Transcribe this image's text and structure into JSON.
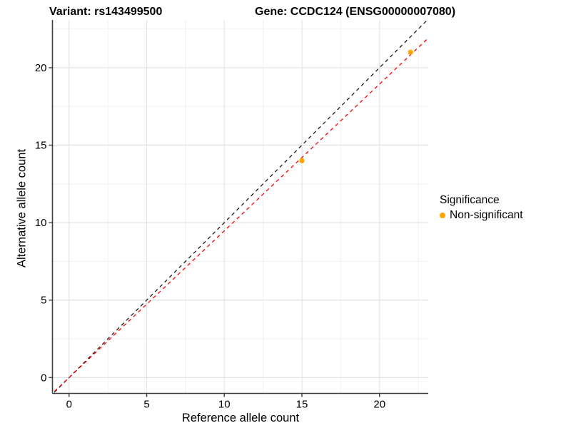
{
  "figure": {
    "title_variant": "Variant: rs143499500",
    "title_gene": "Gene: CCDC124 (ENSG00000007080)"
  },
  "chart_data": {
    "type": "scatter",
    "title": "Variant: rs143499500   Gene: CCDC124 (ENSG00000007080)",
    "xlabel": "Reference allele count",
    "ylabel": "Alternative allele count",
    "xlim": [
      -1.07,
      23.14
    ],
    "ylim": [
      -1.02,
      23.08
    ],
    "x_ticks": [
      0,
      5,
      10,
      15,
      20
    ],
    "y_ticks": [
      0,
      5,
      10,
      15,
      20
    ],
    "x_minor_ticks": [
      2.5,
      7.5,
      12.5,
      17.5,
      22.5
    ],
    "y_minor_ticks": [
      2.5,
      7.5,
      12.5,
      17.5,
      22.5
    ],
    "grid": "major+minor",
    "points": [
      {
        "x": 15,
        "y": 14,
        "series": "Non-significant"
      },
      {
        "x": 22,
        "y": 21,
        "series": "Non-significant"
      }
    ],
    "lines": [
      {
        "name": "identity-line",
        "slope": 1.0,
        "intercept": 0,
        "color": "#1a1a1a",
        "style": "dashed"
      },
      {
        "name": "fit-line",
        "slope": 0.947,
        "intercept": 0,
        "color": "#ff0000",
        "style": "dashed"
      }
    ],
    "legend": {
      "title": "Significance",
      "position": "right",
      "entries": [
        {
          "label": "Non-significant",
          "color": "#FFA500"
        }
      ]
    },
    "colors": {
      "point": "#FFA500",
      "grid_major": "#e3e3e3",
      "grid_minor": "#f1f1f1",
      "axis_line": "#3c3c3c",
      "text": "#000000",
      "background": "#ffffff"
    }
  }
}
